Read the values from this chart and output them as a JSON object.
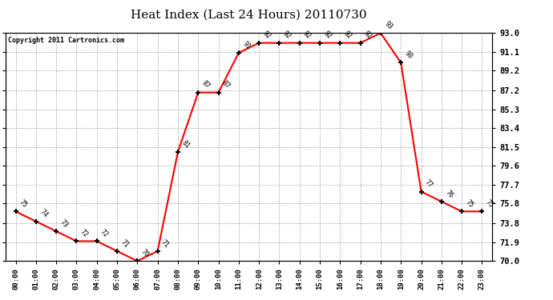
{
  "title": "Heat Index (Last 24 Hours) 20110730",
  "copyright": "Copyright 2011 Cartronics.com",
  "hours": [
    "00:00",
    "01:00",
    "02:00",
    "03:00",
    "04:00",
    "05:00",
    "06:00",
    "07:00",
    "08:00",
    "09:00",
    "10:00",
    "11:00",
    "12:00",
    "13:00",
    "14:00",
    "15:00",
    "16:00",
    "17:00",
    "18:00",
    "19:00",
    "20:00",
    "21:00",
    "22:00",
    "23:00"
  ],
  "values": [
    75,
    74,
    73,
    72,
    72,
    71,
    70,
    71,
    81,
    87,
    87,
    91,
    92,
    92,
    92,
    92,
    92,
    92,
    93,
    90,
    77,
    76,
    75,
    75
  ],
  "yticks": [
    70.0,
    71.9,
    73.8,
    75.8,
    77.7,
    79.6,
    81.5,
    83.4,
    85.3,
    87.2,
    89.2,
    91.1,
    93.0
  ],
  "ylim": [
    70.0,
    93.0
  ],
  "line_color": "red",
  "marker_color": "black",
  "bg_color": "white",
  "grid_color": "#aaaaaa",
  "title_fontsize": 11,
  "label_fontsize": 6.5,
  "annotation_fontsize": 6,
  "copyright_fontsize": 6
}
